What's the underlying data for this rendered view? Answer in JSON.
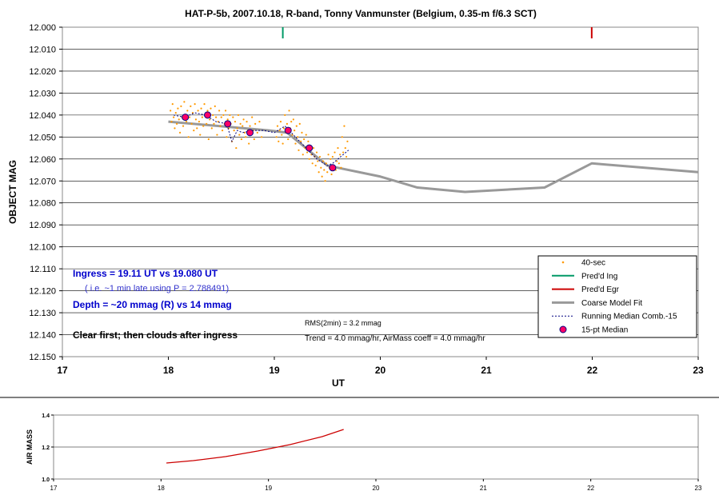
{
  "chart_data": [
    {
      "type": "scatter",
      "title": "HAT-P-5b, 2007.10.18, R-band, Tonny Vanmunster (Belgium, 0.35-m f/6.3 SCT)",
      "xlabel": "UT",
      "ylabel": "OBJECT MAG",
      "xlim": [
        17,
        23
      ],
      "ylim": [
        12.15,
        12.0
      ],
      "y_inverted": true,
      "x_ticks": [
        "17",
        "18",
        "19",
        "20",
        "21",
        "22",
        "23"
      ],
      "y_ticks": [
        "12.000",
        "12.010",
        "12.020",
        "12.030",
        "12.040",
        "12.050",
        "12.060",
        "12.070",
        "12.080",
        "12.090",
        "12.100",
        "12.110",
        "12.120",
        "12.130",
        "12.140",
        "12.150"
      ],
      "grid": "horizontal",
      "legend_position": "bottom-right",
      "colors": {
        "observations": "#ff9900",
        "predicted_ingress": "#009966",
        "predicted_egress": "#cc0000",
        "model": "#999999",
        "running_median": "#000080",
        "median_points": "#ff0066",
        "annotation_blue": "#0000cc",
        "annotation_light_blue": "#3333cc"
      },
      "legend": [
        {
          "key": "obs",
          "label": "40-sec"
        },
        {
          "key": "ing",
          "label": "Pred'd Ing"
        },
        {
          "key": "egr",
          "label": "Pred'd Egr"
        },
        {
          "key": "model",
          "label": "Coarse Model Fit"
        },
        {
          "key": "running",
          "label": "Running Median Comb.-15"
        },
        {
          "key": "median",
          "label": "15-pt Median"
        }
      ],
      "predicted_ingress": 19.08,
      "predicted_egress": 21.995,
      "observations": [
        [
          18.02,
          12.038
        ],
        [
          18.03,
          12.043
        ],
        [
          18.04,
          12.035
        ],
        [
          18.05,
          12.041
        ],
        [
          18.06,
          12.046
        ],
        [
          18.07,
          12.039
        ],
        [
          18.08,
          12.044
        ],
        [
          18.09,
          12.037
        ],
        [
          18.1,
          12.042
        ],
        [
          18.11,
          12.048
        ],
        [
          18.12,
          12.036
        ],
        [
          18.13,
          12.041
        ],
        [
          18.14,
          12.045
        ],
        [
          18.15,
          12.034
        ],
        [
          18.16,
          12.04
        ],
        [
          18.17,
          12.043
        ],
        [
          18.18,
          12.038
        ],
        [
          18.19,
          12.05
        ],
        [
          18.2,
          12.041
        ],
        [
          18.21,
          12.036
        ],
        [
          18.22,
          12.044
        ],
        [
          18.23,
          12.039
        ],
        [
          18.24,
          12.047
        ],
        [
          18.25,
          12.035
        ],
        [
          18.26,
          12.042
        ],
        [
          18.27,
          12.046
        ],
        [
          18.28,
          12.038
        ],
        [
          18.29,
          12.043
        ],
        [
          18.3,
          12.049
        ],
        [
          18.31,
          12.037
        ],
        [
          18.32,
          12.041
        ],
        [
          18.33,
          12.045
        ],
        [
          18.34,
          12.035
        ],
        [
          18.35,
          12.04
        ],
        [
          18.36,
          12.044
        ],
        [
          18.37,
          12.038
        ],
        [
          18.38,
          12.051
        ],
        [
          18.39,
          12.042
        ],
        [
          18.4,
          12.037
        ],
        [
          18.41,
          12.046
        ],
        [
          18.42,
          12.04
        ],
        [
          18.43,
          12.044
        ],
        [
          18.44,
          12.036
        ],
        [
          18.45,
          12.041
        ],
        [
          18.46,
          12.049
        ],
        [
          18.47,
          12.043
        ],
        [
          18.48,
          12.038
        ],
        [
          18.49,
          12.045
        ],
        [
          18.5,
          12.041
        ],
        [
          18.51,
          12.047
        ],
        [
          18.52,
          12.04
        ],
        [
          18.53,
          12.044
        ],
        [
          18.54,
          12.038
        ],
        [
          18.55,
          12.05
        ],
        [
          18.56,
          12.042
        ],
        [
          18.57,
          12.046
        ],
        [
          18.58,
          12.04
        ],
        [
          18.59,
          12.044
        ],
        [
          18.6,
          12.052
        ],
        [
          18.61,
          12.041
        ],
        [
          18.62,
          12.047
        ],
        [
          18.63,
          12.043
        ],
        [
          18.64,
          12.055
        ],
        [
          18.65,
          12.046
        ],
        [
          18.66,
          12.04
        ],
        [
          18.67,
          12.049
        ],
        [
          18.68,
          12.044
        ],
        [
          18.69,
          12.051
        ],
        [
          18.7,
          12.045
        ],
        [
          18.71,
          12.042
        ],
        [
          18.72,
          12.048
        ],
        [
          18.73,
          12.05
        ],
        [
          18.74,
          12.043
        ],
        [
          18.75,
          12.047
        ],
        [
          18.76,
          12.053
        ],
        [
          18.77,
          12.045
        ],
        [
          18.78,
          12.049
        ],
        [
          18.79,
          12.041
        ],
        [
          18.8,
          12.047
        ],
        [
          18.81,
          12.051
        ],
        [
          18.82,
          12.044
        ],
        [
          18.84,
          12.048
        ],
        [
          18.86,
          12.043
        ],
        [
          18.88,
          12.05
        ],
        [
          19.02,
          12.05
        ],
        [
          19.03,
          12.045
        ],
        [
          19.04,
          12.052
        ],
        [
          19.05,
          12.047
        ],
        [
          19.06,
          12.043
        ],
        [
          19.07,
          12.049
        ],
        [
          19.08,
          12.053
        ],
        [
          19.09,
          12.046
        ],
        [
          19.1,
          12.04
        ],
        [
          19.11,
          12.048
        ],
        [
          19.12,
          12.044
        ],
        [
          19.13,
          12.051
        ],
        [
          19.14,
          12.038
        ],
        [
          19.15,
          12.046
        ],
        [
          19.16,
          12.043
        ],
        [
          19.17,
          12.049
        ],
        [
          19.18,
          12.042
        ],
        [
          19.19,
          12.047
        ],
        [
          19.2,
          12.053
        ],
        [
          19.21,
          12.045
        ],
        [
          19.22,
          12.05
        ],
        [
          19.23,
          12.056
        ],
        [
          19.24,
          12.044
        ],
        [
          19.25,
          12.052
        ],
        [
          19.26,
          12.048
        ],
        [
          19.27,
          12.058
        ],
        [
          19.28,
          12.051
        ],
        [
          19.29,
          12.055
        ],
        [
          19.3,
          12.049
        ],
        [
          19.31,
          12.057
        ],
        [
          19.32,
          12.052
        ],
        [
          19.33,
          12.06
        ],
        [
          19.34,
          12.054
        ],
        [
          19.35,
          12.058
        ],
        [
          19.36,
          12.062
        ],
        [
          19.37,
          12.055
        ],
        [
          19.38,
          12.059
        ],
        [
          19.39,
          12.063
        ],
        [
          19.4,
          12.057
        ],
        [
          19.41,
          12.061
        ],
        [
          19.42,
          12.066
        ],
        [
          19.43,
          12.059
        ],
        [
          19.44,
          12.064
        ],
        [
          19.45,
          12.068
        ],
        [
          19.46,
          12.061
        ],
        [
          19.47,
          12.065
        ],
        [
          19.48,
          12.07
        ],
        [
          19.49,
          12.062
        ],
        [
          19.5,
          12.066
        ],
        [
          19.51,
          12.058
        ],
        [
          19.52,
          12.064
        ],
        [
          19.53,
          12.06
        ],
        [
          19.54,
          12.067
        ],
        [
          19.55,
          12.059
        ],
        [
          19.56,
          12.063
        ],
        [
          19.57,
          12.057
        ],
        [
          19.58,
          12.065
        ],
        [
          19.59,
          12.061
        ],
        [
          19.6,
          12.055
        ],
        [
          19.61,
          12.062
        ],
        [
          19.62,
          12.058
        ],
        [
          19.63,
          12.064
        ],
        [
          19.64,
          12.05
        ],
        [
          19.65,
          12.057
        ],
        [
          19.66,
          12.045
        ],
        [
          19.67,
          12.055
        ],
        [
          19.68,
          12.059
        ],
        [
          19.69,
          12.052
        ]
      ],
      "model_fit": [
        [
          18.0,
          12.043
        ],
        [
          18.95,
          12.047
        ],
        [
          19.12,
          12.048
        ],
        [
          19.5,
          12.063
        ],
        [
          20.0,
          12.068
        ],
        [
          20.35,
          12.073
        ],
        [
          20.8,
          12.075
        ],
        [
          21.55,
          12.073
        ],
        [
          21.995,
          12.062
        ],
        [
          23.0,
          12.066
        ]
      ],
      "running_median": [
        [
          18.05,
          12.04
        ],
        [
          18.15,
          12.041
        ],
        [
          18.25,
          12.039
        ],
        [
          18.35,
          12.04
        ],
        [
          18.45,
          12.043
        ],
        [
          18.55,
          12.044
        ],
        [
          18.6,
          12.052
        ],
        [
          18.65,
          12.047
        ],
        [
          18.7,
          12.048
        ],
        [
          18.8,
          12.047
        ],
        [
          18.9,
          12.047
        ],
        [
          19.0,
          12.048
        ],
        [
          19.1,
          12.045
        ],
        [
          19.2,
          12.05
        ],
        [
          19.3,
          12.055
        ],
        [
          19.4,
          12.06
        ],
        [
          19.5,
          12.063
        ],
        [
          19.55,
          12.062
        ],
        [
          19.6,
          12.06
        ],
        [
          19.65,
          12.058
        ],
        [
          19.7,
          12.056
        ]
      ],
      "median_points": [
        [
          18.16,
          12.041
        ],
        [
          18.37,
          12.04
        ],
        [
          18.56,
          12.044
        ],
        [
          18.77,
          12.048
        ],
        [
          19.13,
          12.047
        ],
        [
          19.33,
          12.055
        ],
        [
          19.55,
          12.064
        ]
      ],
      "annotations": {
        "ingress": "Ingress = 19.11 UT  vs 19.080 UT",
        "late": "( i.e. ~1 min late using P = 2.788491)",
        "depth": "Depth = ~20 mmag (R)  vs 14 mmag",
        "clouds": "Clear first; then clouds after ingress",
        "rms": "RMS(2min) = 3.2 mmag",
        "trend": "Trend = 4.0 mmag/hr, AirMass coeff = 4.0 mmag/hr"
      }
    },
    {
      "type": "line",
      "ylabel": "AIR MASS",
      "xlim": [
        17,
        23
      ],
      "ylim": [
        1.0,
        1.4
      ],
      "x_ticks": [
        "17",
        "18",
        "19",
        "20",
        "21",
        "22",
        "23"
      ],
      "y_ticks": [
        "1.0",
        "1.2",
        "1.4"
      ],
      "color": "#cc0000",
      "values": [
        [
          18.05,
          1.1
        ],
        [
          18.3,
          1.115
        ],
        [
          18.6,
          1.14
        ],
        [
          18.9,
          1.175
        ],
        [
          19.2,
          1.215
        ],
        [
          19.5,
          1.265
        ],
        [
          19.7,
          1.31
        ]
      ]
    }
  ]
}
